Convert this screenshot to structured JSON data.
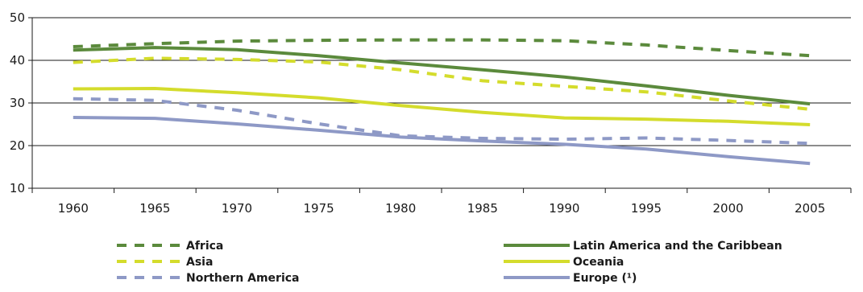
{
  "chart_data": {
    "type": "line",
    "title": "",
    "xlabel": "",
    "ylabel": "",
    "x": [
      1960,
      1965,
      1970,
      1975,
      1980,
      1985,
      1990,
      1995,
      2000,
      2005
    ],
    "x_tick_labels": [
      "1960",
      "1965",
      "1970",
      "1975",
      "1980",
      "1985",
      "1990",
      "1995",
      "2000",
      "2005"
    ],
    "ylim": [
      10,
      50
    ],
    "y_ticks": [
      10,
      20,
      30,
      40,
      50
    ],
    "y_tick_labels": [
      "10",
      "20",
      "30",
      "40",
      "50"
    ],
    "grid": "horizontal",
    "legend_position": "bottom",
    "series": [
      {
        "name": "Africa",
        "style": "dashed",
        "color": "#5b8a3c",
        "values": [
          43.2,
          43.9,
          44.5,
          44.7,
          44.8,
          44.8,
          44.6,
          43.6,
          42.3,
          41.1
        ]
      },
      {
        "name": "Latin America and the Caribbean",
        "style": "solid",
        "color": "#5b8a3c",
        "values": [
          42.4,
          43.0,
          42.5,
          41.1,
          39.4,
          37.8,
          36.1,
          34.0,
          31.8,
          29.8
        ]
      },
      {
        "name": "Asia",
        "style": "dashed",
        "color": "#d4dc2c",
        "values": [
          39.5,
          40.5,
          40.2,
          39.6,
          37.8,
          35.2,
          33.9,
          32.6,
          30.5,
          28.5
        ]
      },
      {
        "name": "Oceania",
        "style": "solid",
        "color": "#d4dc2c",
        "values": [
          33.3,
          33.4,
          32.4,
          31.2,
          29.4,
          27.8,
          26.5,
          26.2,
          25.7,
          24.9
        ]
      },
      {
        "name": "Northern America",
        "style": "dashed",
        "color": "#8e99c6",
        "values": [
          31.0,
          30.6,
          28.3,
          25.1,
          22.3,
          21.7,
          21.5,
          21.8,
          21.2,
          20.5
        ]
      },
      {
        "name": "Europe (¹)",
        "style": "solid",
        "color": "#8e99c6",
        "values": [
          26.6,
          26.4,
          25.1,
          23.6,
          22.0,
          21.1,
          20.3,
          19.2,
          17.4,
          15.8
        ]
      }
    ]
  }
}
